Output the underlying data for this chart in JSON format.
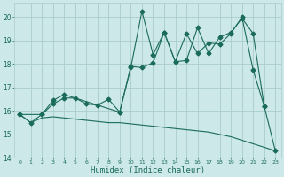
{
  "title": "",
  "xlabel": "Humidex (Indice chaleur)",
  "background_color": "#cce8e8",
  "grid_color": "#aacccc",
  "line_color": "#1a6b5a",
  "xlim": [
    -0.5,
    23.5
  ],
  "ylim": [
    14,
    20.6
  ],
  "yticks": [
    14,
    15,
    16,
    17,
    18,
    19,
    20
  ],
  "xticks": [
    0,
    1,
    2,
    3,
    4,
    5,
    6,
    7,
    8,
    9,
    10,
    11,
    12,
    13,
    14,
    15,
    16,
    17,
    18,
    19,
    20,
    21,
    22,
    23
  ],
  "line1_x": [
    0,
    1,
    2,
    3,
    4,
    5,
    6,
    7,
    8,
    9,
    10,
    11,
    12,
    13,
    14,
    15,
    16,
    17,
    18,
    19,
    20,
    21,
    22,
    23
  ],
  "line1_y": [
    15.85,
    15.5,
    15.7,
    15.75,
    15.7,
    15.65,
    15.6,
    15.55,
    15.5,
    15.5,
    15.45,
    15.4,
    15.35,
    15.3,
    15.25,
    15.2,
    15.15,
    15.1,
    15.0,
    14.9,
    14.75,
    14.6,
    14.45,
    14.3
  ],
  "line2_x": [
    0,
    1,
    2,
    3,
    4,
    5,
    6,
    7,
    8,
    9,
    10,
    11,
    12,
    13,
    14,
    15,
    16,
    17,
    18,
    19,
    20,
    21,
    22
  ],
  "line2_y": [
    15.85,
    15.5,
    15.85,
    16.3,
    16.55,
    16.55,
    16.3,
    16.25,
    16.5,
    15.95,
    17.85,
    20.25,
    18.4,
    19.35,
    18.1,
    19.3,
    18.45,
    18.9,
    18.85,
    19.3,
    20.0,
    17.75,
    16.2
  ],
  "line3_x": [
    0,
    2,
    3,
    4,
    9,
    10,
    11,
    12,
    13,
    14,
    15,
    16,
    17,
    18,
    19,
    20,
    21,
    22,
    23
  ],
  "line3_y": [
    15.85,
    15.85,
    16.45,
    16.7,
    15.95,
    17.9,
    17.85,
    18.05,
    19.35,
    18.1,
    18.15,
    19.55,
    18.45,
    19.15,
    19.35,
    19.95,
    19.3,
    16.2,
    14.3
  ],
  "marker": "D",
  "markersize": 2.5,
  "linewidth": 0.8
}
